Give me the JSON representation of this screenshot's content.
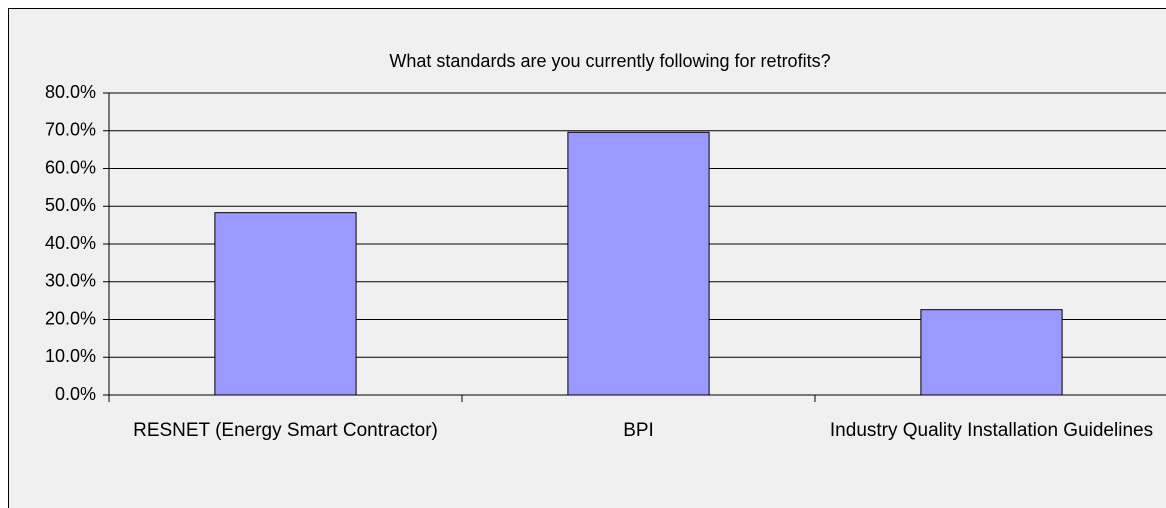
{
  "chart_data": {
    "type": "bar",
    "title": "What standards are you currently following for retrofits?",
    "categories": [
      "RESNET (Energy Smart Contractor)",
      "BPI",
      "Industry Quality Installation Guidelines"
    ],
    "values": [
      48.3,
      69.6,
      22.6
    ],
    "color": "#9999ff",
    "ylim": [
      0,
      80
    ],
    "yticks": [
      {
        "value": 0,
        "label": "0.0%"
      },
      {
        "value": 10,
        "label": "10.0%"
      },
      {
        "value": 20,
        "label": "20.0%"
      },
      {
        "value": 30,
        "label": "30.0%"
      },
      {
        "value": 40,
        "label": "40.0%"
      },
      {
        "value": 50,
        "label": "50.0%"
      },
      {
        "value": 60,
        "label": "60.0%"
      },
      {
        "value": 70,
        "label": "70.0%"
      },
      {
        "value": 80,
        "label": "80.0%"
      }
    ],
    "grid": true
  }
}
